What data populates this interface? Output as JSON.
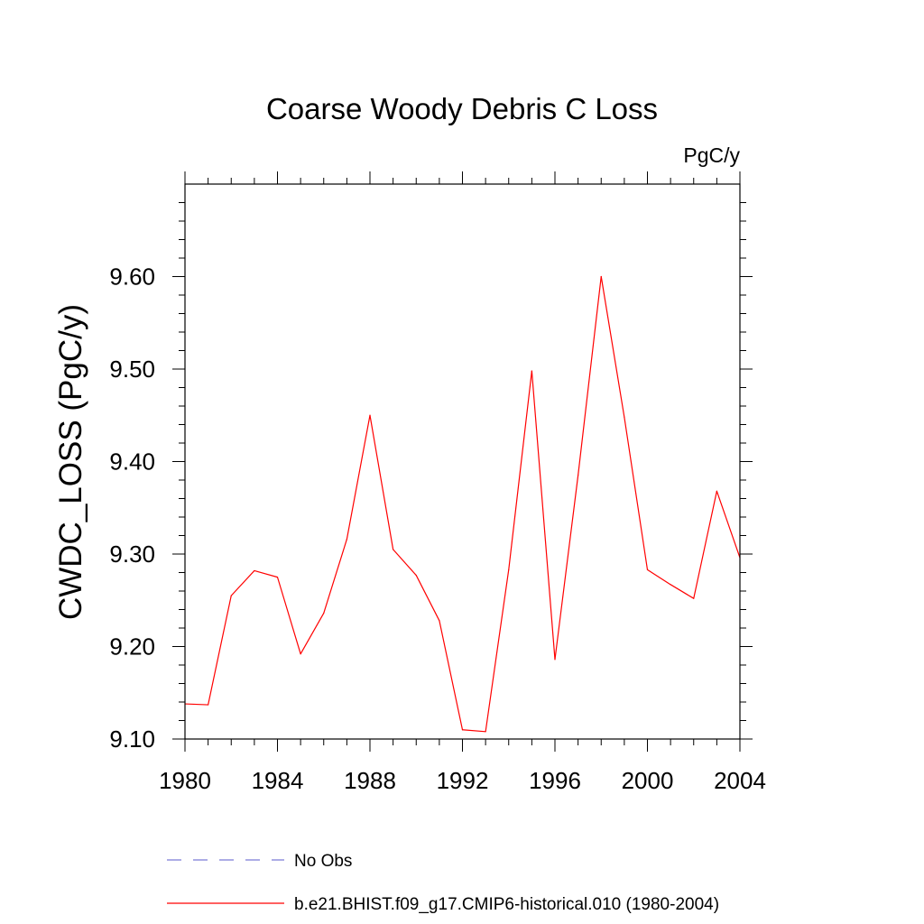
{
  "chart_data": {
    "type": "line",
    "title": "Coarse Woody Debris C Loss",
    "units": "PgC/y",
    "xlabel": "",
    "ylabel": "CWDC_LOSS  (PgC/y)",
    "xlim": [
      1980,
      2004
    ],
    "ylim": [
      9.1,
      9.7
    ],
    "x_ticks": [
      "1980",
      "1984",
      "1988",
      "1992",
      "1996",
      "2000",
      "2004"
    ],
    "y_ticks": [
      "9.10",
      "9.20",
      "9.30",
      "9.40",
      "9.50",
      "9.60"
    ],
    "grid": false,
    "series": [
      {
        "name": "b.e21.BHIST.f09_g17.CMIP6-historical.010 (1980-2004)",
        "color": "#ff0000",
        "style": "solid",
        "x": [
          1980,
          1981,
          1982,
          1983,
          1984,
          1985,
          1986,
          1987,
          1988,
          1989,
          1990,
          1991,
          1992,
          1993,
          1994,
          1995,
          1996,
          1997,
          1998,
          1999,
          2000,
          2001,
          2002,
          2003,
          2004
        ],
        "values": [
          9.138,
          9.137,
          9.255,
          9.282,
          9.275,
          9.192,
          9.236,
          9.316,
          9.45,
          9.305,
          9.277,
          9.228,
          9.11,
          9.108,
          9.283,
          9.498,
          9.186,
          9.385,
          9.6,
          9.448,
          9.283,
          9.267,
          9.252,
          9.368,
          9.296
        ]
      }
    ],
    "legend": [
      {
        "label": "No Obs",
        "color": "#7b7bd6",
        "style": "dashed"
      },
      {
        "label": "b.e21.BHIST.f09_g17.CMIP6-historical.010 (1980-2004)",
        "color": "#ff0000",
        "style": "solid"
      }
    ]
  }
}
